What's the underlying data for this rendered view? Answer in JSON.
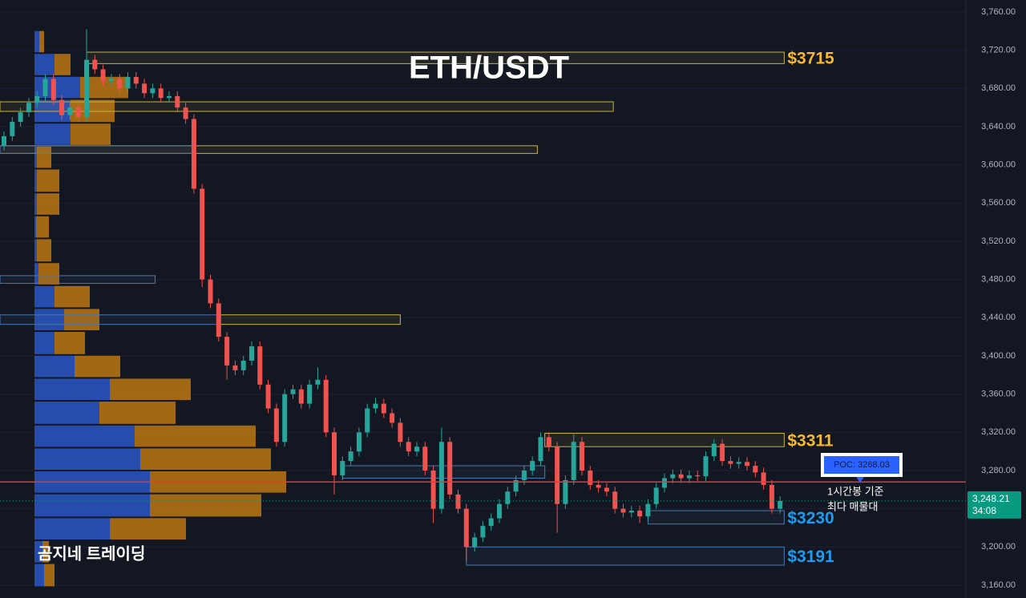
{
  "chart_data": {
    "type": "candlestick",
    "title": "ETH/USDT",
    "watermark": "곰지네 트레이딩",
    "ylim": [
      3160,
      3760
    ],
    "yticks": [
      {
        "value": 3160,
        "label": "3,160.00"
      },
      {
        "value": 3200,
        "label": "3,200.00"
      },
      {
        "value": 3240,
        "label": "3,240.00"
      },
      {
        "value": 3280,
        "label": "3,280.00"
      },
      {
        "value": 3320,
        "label": "3,320.00"
      },
      {
        "value": 3360,
        "label": "3,360.00"
      },
      {
        "value": 3400,
        "label": "3,400.00"
      },
      {
        "value": 3440,
        "label": "3,440.00"
      },
      {
        "value": 3480,
        "label": "3,480.00"
      },
      {
        "value": 3520,
        "label": "3,520.00"
      },
      {
        "value": 3560,
        "label": "3,560.00"
      },
      {
        "value": 3600,
        "label": "3,600.00"
      },
      {
        "value": 3640,
        "label": "3,640.00"
      },
      {
        "value": 3680,
        "label": "3,680.00"
      },
      {
        "value": 3720,
        "label": "3,720.00"
      },
      {
        "value": 3760,
        "label": "3,760.00"
      }
    ],
    "up_color": "#26a69a",
    "down_color": "#ef5350",
    "candles": {
      "open": [
        3620,
        3630,
        3645,
        3655,
        3665,
        3672,
        3690,
        3668,
        3652,
        3660,
        3650,
        3710,
        3700,
        3688,
        3690,
        3680,
        3692,
        3685,
        3675,
        3680,
        3670,
        3672,
        3660,
        3648,
        3575,
        3480,
        3455,
        3420,
        3390,
        3385,
        3395,
        3410,
        3370,
        3345,
        3310,
        3360,
        3365,
        3350,
        3370,
        3375,
        3320,
        3275,
        3290,
        3300,
        3320,
        3345,
        3350,
        3340,
        3330,
        3310,
        3300,
        3305,
        3280,
        3240,
        3310,
        3255,
        3240,
        3200,
        3210,
        3222,
        3230,
        3245,
        3258,
        3270,
        3280,
        3290,
        3315,
        3305,
        3245,
        3270,
        3310,
        3280,
        3265,
        3262,
        3258,
        3240,
        3236,
        3238,
        3232,
        3245,
        3262,
        3272,
        3276,
        3272,
        3275,
        3274,
        3295,
        3308,
        3290,
        3287,
        3289,
        3285,
        3278,
        3265,
        3240
      ],
      "high": [
        3635,
        3650,
        3660,
        3670,
        3677,
        3695,
        3695,
        3673,
        3665,
        3665,
        3742,
        3715,
        3705,
        3695,
        3695,
        3697,
        3697,
        3690,
        3685,
        3685,
        3677,
        3677,
        3665,
        3653,
        3580,
        3485,
        3460,
        3425,
        3395,
        3400,
        3415,
        3415,
        3375,
        3350,
        3365,
        3370,
        3370,
        3375,
        3388,
        3380,
        3325,
        3295,
        3305,
        3325,
        3350,
        3356,
        3355,
        3345,
        3335,
        3315,
        3310,
        3310,
        3285,
        3325,
        3315,
        3260,
        3245,
        3215,
        3227,
        3235,
        3250,
        3263,
        3275,
        3285,
        3295,
        3320,
        3320,
        3310,
        3275,
        3318,
        3315,
        3285,
        3270,
        3267,
        3263,
        3245,
        3243,
        3243,
        3250,
        3267,
        3277,
        3281,
        3281,
        3280,
        3280,
        3300,
        3313,
        3313,
        3295,
        3294,
        3294,
        3290,
        3283,
        3270,
        3253
      ],
      "low": [
        3615,
        3625,
        3640,
        3650,
        3660,
        3667,
        3663,
        3647,
        3647,
        3645,
        3645,
        3695,
        3683,
        3683,
        3675,
        3675,
        3680,
        3670,
        3670,
        3665,
        3665,
        3655,
        3643,
        3570,
        3472,
        3450,
        3415,
        3375,
        3380,
        3380,
        3390,
        3365,
        3340,
        3305,
        3305,
        3355,
        3345,
        3345,
        3365,
        3315,
        3255,
        3270,
        3285,
        3295,
        3315,
        3340,
        3335,
        3325,
        3305,
        3295,
        3295,
        3275,
        3225,
        3235,
        3250,
        3235,
        3185,
        3195,
        3205,
        3217,
        3225,
        3240,
        3253,
        3265,
        3275,
        3285,
        3300,
        3215,
        3240,
        3265,
        3275,
        3260,
        3257,
        3253,
        3235,
        3231,
        3231,
        3225,
        3227,
        3240,
        3257,
        3267,
        3267,
        3267,
        3269,
        3269,
        3290,
        3285,
        3282,
        3282,
        3280,
        3273,
        3260,
        3235,
        3235
      ],
      "close": [
        3630,
        3645,
        3655,
        3665,
        3672,
        3690,
        3668,
        3652,
        3660,
        3650,
        3710,
        3700,
        3688,
        3690,
        3680,
        3692,
        3685,
        3675,
        3680,
        3670,
        3672,
        3660,
        3648,
        3575,
        3480,
        3455,
        3420,
        3390,
        3385,
        3395,
        3410,
        3370,
        3345,
        3310,
        3360,
        3365,
        3350,
        3370,
        3375,
        3320,
        3275,
        3290,
        3300,
        3320,
        3345,
        3350,
        3340,
        3330,
        3310,
        3300,
        3305,
        3280,
        3240,
        3310,
        3255,
        3240,
        3200,
        3210,
        3222,
        3230,
        3245,
        3258,
        3270,
        3280,
        3290,
        3315,
        3305,
        3245,
        3270,
        3310,
        3280,
        3265,
        3262,
        3258,
        3240,
        3236,
        3238,
        3232,
        3245,
        3262,
        3272,
        3276,
        3272,
        3275,
        3274,
        3295,
        3308,
        3290,
        3287,
        3289,
        3285,
        3278,
        3265,
        3240,
        3248.21
      ]
    },
    "volume_profile": {
      "xlim": [
        0,
        1162
      ],
      "buy_color": "#2a56c6",
      "sell_color": "#c77d12",
      "bins": [
        3158,
        3183,
        3207,
        3231,
        3256,
        3280,
        3304,
        3328,
        3353,
        3377,
        3401,
        3426,
        3450,
        3474,
        3498,
        3523,
        3547,
        3571,
        3596,
        3620,
        3644,
        3669,
        3693,
        3717,
        3741
      ],
      "buy": [
        12,
        10,
        94,
        144,
        144,
        132,
        125,
        81,
        94,
        50,
        25,
        37,
        25,
        5,
        3,
        2,
        3,
        3,
        3,
        45,
        45,
        57,
        25,
        6
      ],
      "sell": [
        13,
        8,
        95,
        139,
        170,
        163,
        151,
        95,
        101,
        57,
        38,
        44,
        44,
        26,
        18,
        16,
        28,
        28,
        18,
        50,
        55,
        60,
        20,
        6
      ]
    },
    "zones": [
      {
        "low": 3706,
        "high": 3718,
        "start": 10,
        "end": 94.5,
        "color": "#c9b43a",
        "label": "$3715"
      },
      {
        "low": 3656,
        "high": 3666,
        "start": -0.5,
        "end": 73.8,
        "color": "#c9b43a"
      },
      {
        "low": 3612,
        "high": 3620,
        "start": -0.5,
        "end": 64.6,
        "color": "#c9b43a"
      },
      {
        "low": 3612,
        "high": 3620,
        "start": -0.5,
        "end": 22.8,
        "color": "#4a78b0"
      },
      {
        "low": 3476,
        "high": 3484,
        "start": -0.5,
        "end": 18.3,
        "color": "#4a78b0"
      },
      {
        "low": 3433,
        "high": 3443,
        "start": 25.8,
        "end": 48,
        "color": "#c9b43a"
      },
      {
        "low": 3433,
        "high": 3443,
        "start": -0.5,
        "end": 25.8,
        "color": "#4a78b0"
      },
      {
        "low": 3305,
        "high": 3319,
        "start": 65.5,
        "end": 94.5,
        "color": "#c9b43a",
        "label": "$3311"
      },
      {
        "low": 3272,
        "high": 3285,
        "start": 41,
        "end": 65.5,
        "color": "#4a78b0"
      },
      {
        "low": 3224,
        "high": 3238,
        "start": 78,
        "end": 94.5,
        "color": "#4a78b0",
        "label": "$3230"
      },
      {
        "low": 3181,
        "high": 3200,
        "start": 56,
        "end": 94.5,
        "color": "#4a78b0",
        "label": "$3191"
      }
    ],
    "poc": {
      "value": 3268.03,
      "label": "POC: 3268.03",
      "color": "#e53935",
      "note": [
        "1시간봉 기준",
        "최다 매물대"
      ]
    },
    "last_price": {
      "value": 3248.21,
      "label": "3,248.21",
      "countdown": "34:08",
      "color": "#089981"
    }
  }
}
